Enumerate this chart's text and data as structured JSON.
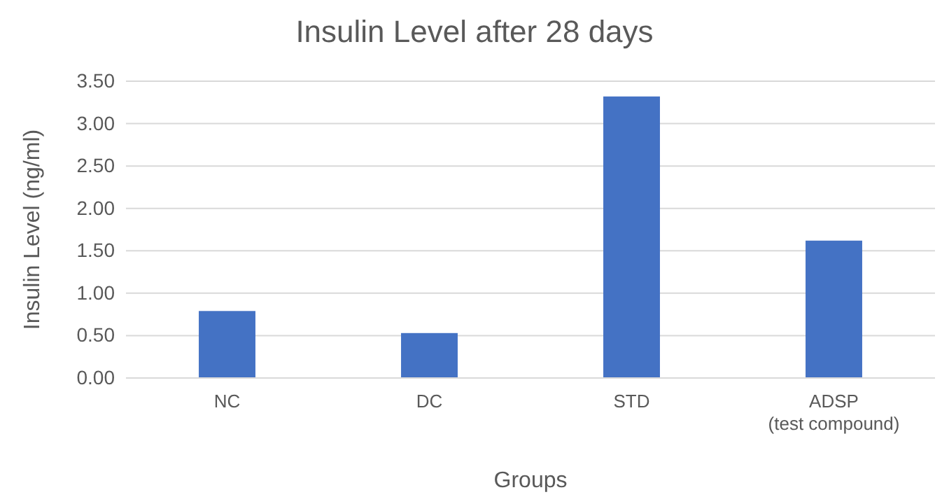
{
  "chart_data": {
    "type": "bar",
    "title": "Insulin Level after 28 days",
    "xlabel": "Groups",
    "ylabel": "Insulin Level (ng/ml)",
    "categories": [
      "NC",
      "DC",
      "STD",
      "ADSP (test compound)"
    ],
    "values": [
      0.79,
      0.53,
      3.32,
      1.62
    ],
    "color": "#4472c4",
    "ylim": [
      0,
      3.5
    ],
    "yticks": [
      {
        "value": 0,
        "label": "0.00"
      },
      {
        "value": 0.5,
        "label": "0.50"
      },
      {
        "value": 1,
        "label": "1.00"
      },
      {
        "value": 1.5,
        "label": "1.50"
      },
      {
        "value": 2,
        "label": "2.00"
      },
      {
        "value": 2.5,
        "label": "2.50"
      },
      {
        "value": 3,
        "label": "3.00"
      },
      {
        "value": 3.5,
        "label": "3.50"
      }
    ],
    "grid": true
  }
}
